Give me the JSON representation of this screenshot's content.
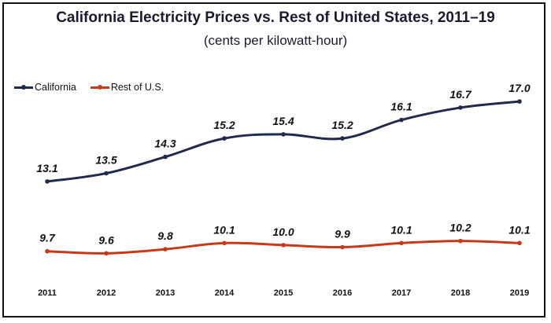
{
  "colors": {
    "california": "#1f2a4d",
    "rest_of_us": "#c8391a"
  },
  "chart_data": {
    "type": "line",
    "title": "California Electricity Prices vs. Rest of United States, 2011–19",
    "subtitle": "(cents per kilowatt-hour)",
    "categories": [
      "2011",
      "2012",
      "2013",
      "2014",
      "2015",
      "2016",
      "2017",
      "2018",
      "2019"
    ],
    "series": [
      {
        "name": "California",
        "values": [
          13.1,
          13.5,
          14.3,
          15.2,
          15.4,
          15.2,
          16.1,
          16.7,
          17.0
        ]
      },
      {
        "name": "Rest of U.S.",
        "values": [
          9.7,
          9.6,
          9.8,
          10.1,
          10.0,
          9.9,
          10.1,
          10.2,
          10.1
        ]
      }
    ],
    "legend": "top-left",
    "grid": false,
    "data_labels": true
  }
}
